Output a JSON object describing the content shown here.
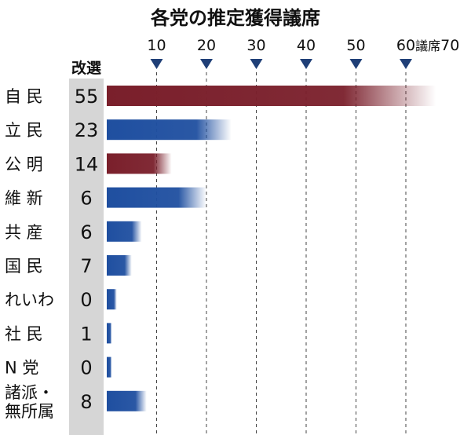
{
  "chart_data": {
    "type": "bar",
    "title": "各党の推定獲得議席",
    "kaisen_label": "改選",
    "x_ticks": [
      "10",
      "20",
      "30",
      "40",
      "50",
      "60"
    ],
    "x_last_tick": "70",
    "unit_label": "議席",
    "xlim": [
      0,
      70
    ],
    "parties": [
      {
        "label": "自 民",
        "lines": [
          "自 民"
        ],
        "kaisen": "55",
        "value": 66,
        "color": "#7a1f2b"
      },
      {
        "label": "立 民",
        "lines": [
          "立 民"
        ],
        "kaisen": "23",
        "value": 25,
        "color": "#1f4fa0"
      },
      {
        "label": "公 明",
        "lines": [
          "公 明"
        ],
        "kaisen": "14",
        "value": 13,
        "color": "#7a1f2b"
      },
      {
        "label": "維 新",
        "lines": [
          "維 新"
        ],
        "kaisen": "6",
        "value": 20,
        "color": "#1f4fa0"
      },
      {
        "label": "共 産",
        "lines": [
          "共 産"
        ],
        "kaisen": "6",
        "value": 7,
        "color": "#1f4fa0"
      },
      {
        "label": "国 民",
        "lines": [
          "国 民"
        ],
        "kaisen": "7",
        "value": 5,
        "color": "#1f4fa0"
      },
      {
        "label": "れいわ",
        "lines": [
          "れいわ"
        ],
        "kaisen": "0",
        "value": 2,
        "color": "#1f4fa0"
      },
      {
        "label": "社 民",
        "lines": [
          "社 民"
        ],
        "kaisen": "1",
        "value": 1,
        "color": "#1f4fa0"
      },
      {
        "label": "N 党",
        "lines": [
          "N 党"
        ],
        "kaisen": "0",
        "value": 1,
        "color": "#1f4fa0"
      },
      {
        "label": "諸派・無所属",
        "lines": [
          "諸派・",
          "無所属"
        ],
        "kaisen": "8",
        "value": 8,
        "color": "#1f4fa0"
      }
    ]
  }
}
